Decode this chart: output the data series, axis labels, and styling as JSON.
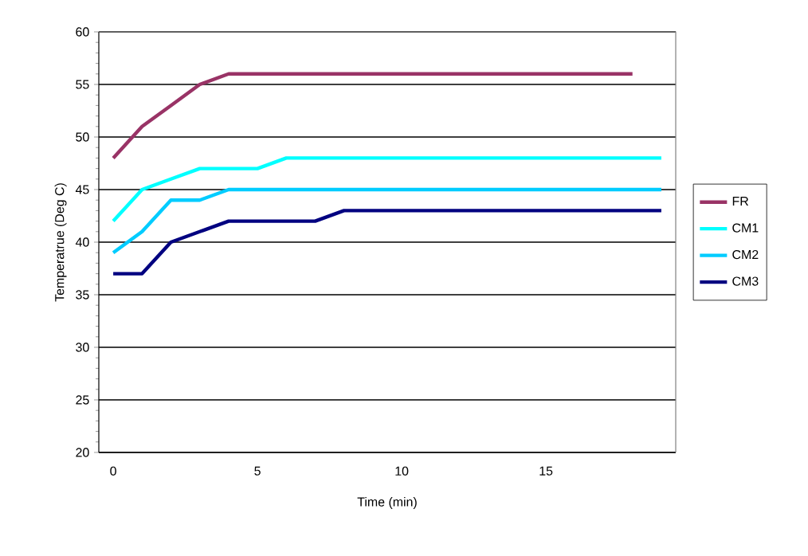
{
  "chart_data": {
    "type": "line",
    "xlabel": "Time (min)",
    "ylabel": "Temperatrue    (Deg C)",
    "categories": [
      "0",
      null,
      null,
      null,
      null,
      "5",
      null,
      null,
      null,
      null,
      "10",
      null,
      null,
      null,
      null,
      "15",
      null,
      null,
      null,
      null
    ],
    "ylim": [
      20,
      60
    ],
    "yticks": [
      20,
      25,
      30,
      35,
      40,
      45,
      50,
      55,
      60
    ],
    "grid": "y",
    "legend": "right",
    "marker": "none",
    "series": [
      {
        "name": "FR",
        "color": "#993366",
        "values": [
          48,
          51,
          53,
          55,
          56,
          56,
          56,
          56,
          56,
          56,
          56,
          56,
          56,
          56,
          56,
          56,
          56,
          56,
          56,
          null
        ]
      },
      {
        "name": "CM1",
        "color": "#00ffff",
        "values": [
          42,
          45,
          46,
          47,
          47,
          47,
          48,
          48,
          48,
          48,
          48,
          48,
          48,
          48,
          48,
          48,
          48,
          48,
          48,
          48
        ]
      },
      {
        "name": "CM2",
        "color": "#00ccff",
        "values": [
          39,
          41,
          44,
          44,
          45,
          45,
          45,
          45,
          45,
          45,
          45,
          45,
          45,
          45,
          45,
          45,
          45,
          45,
          45,
          45
        ]
      },
      {
        "name": "CM3",
        "color": "#000080",
        "values": [
          37,
          37,
          40,
          41,
          42,
          42,
          42,
          42,
          43,
          43,
          43,
          43,
          43,
          43,
          43,
          43,
          43,
          43,
          43,
          43
        ]
      }
    ]
  }
}
